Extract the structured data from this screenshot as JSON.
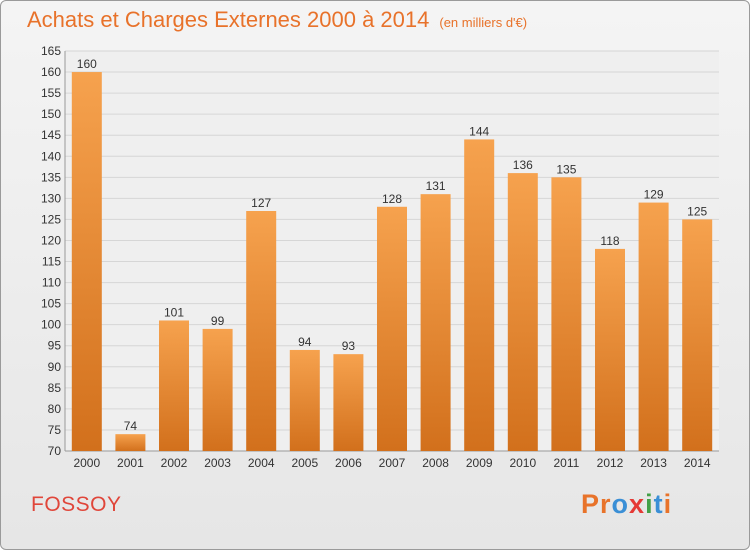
{
  "header": {
    "title": "Achats et Charges Externes 2000 à 2014",
    "subtitle": "(en milliers d'€)"
  },
  "footer": {
    "commune": "FOSSOY",
    "logo": "Proxiti"
  },
  "colors": {
    "bar_top": "#f6a24e",
    "bar_bottom": "#d2701c",
    "title": "#e8722a",
    "commune": "#e0463a",
    "grid": "#d6d6d6",
    "logo_letters": [
      "#e8732a",
      "#e8732a",
      "#3a8fd6",
      "#e53935",
      "#43a047",
      "#3a8fd6",
      "#e8732a"
    ]
  },
  "chart_data": {
    "type": "bar",
    "categories": [
      "2000",
      "2001",
      "2002",
      "2003",
      "2004",
      "2005",
      "2006",
      "2007",
      "2008",
      "2009",
      "2010",
      "2011",
      "2012",
      "2013",
      "2014"
    ],
    "values": [
      160,
      74,
      101,
      99,
      127,
      94,
      93,
      128,
      131,
      144,
      136,
      135,
      118,
      129,
      125
    ],
    "ylim": [
      70,
      165
    ],
    "ytick_step": 5,
    "grid": true,
    "data_labels": true
  }
}
